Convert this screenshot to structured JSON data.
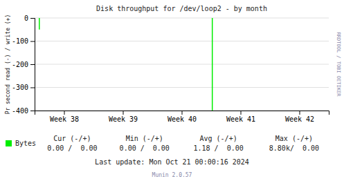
{
  "chart_data": {
    "type": "stem",
    "title": "Disk throughput for /dev/loop2 - by month",
    "y_label": "Pr second read (-) / write (+)",
    "x": [
      0.08,
      3.02
    ],
    "series": [
      {
        "name": "Bytes",
        "color": "#00ee00",
        "values": [
          -50,
          -400
        ]
      }
    ],
    "xlim": [
      0,
      5
    ],
    "xticks": [
      {
        "value": 0.5,
        "label": "Week 38"
      },
      {
        "value": 1.5,
        "label": "Week 39"
      },
      {
        "value": 2.5,
        "label": "Week 40"
      },
      {
        "value": 3.5,
        "label": "Week 41"
      },
      {
        "value": 4.5,
        "label": "Week 42"
      }
    ],
    "ylim": [
      -400,
      0
    ],
    "yticks": [
      0,
      -100,
      -200,
      -300,
      -400
    ],
    "grid": true,
    "legend": "bottom-left",
    "annotations": [
      "Cur (-/+)",
      "Min (-/+)",
      "Avg (-/+)",
      "Max (-/+)",
      "0.00 /  0.00",
      "0.00 /  0.00",
      "1.18 /  0.00",
      "8.80k/  0.00",
      "Last update: Mon Oct 21 00:00:16 2024",
      "Munin 2.0.57",
      "RRDTOOL / TOBI OETIKER"
    ]
  }
}
